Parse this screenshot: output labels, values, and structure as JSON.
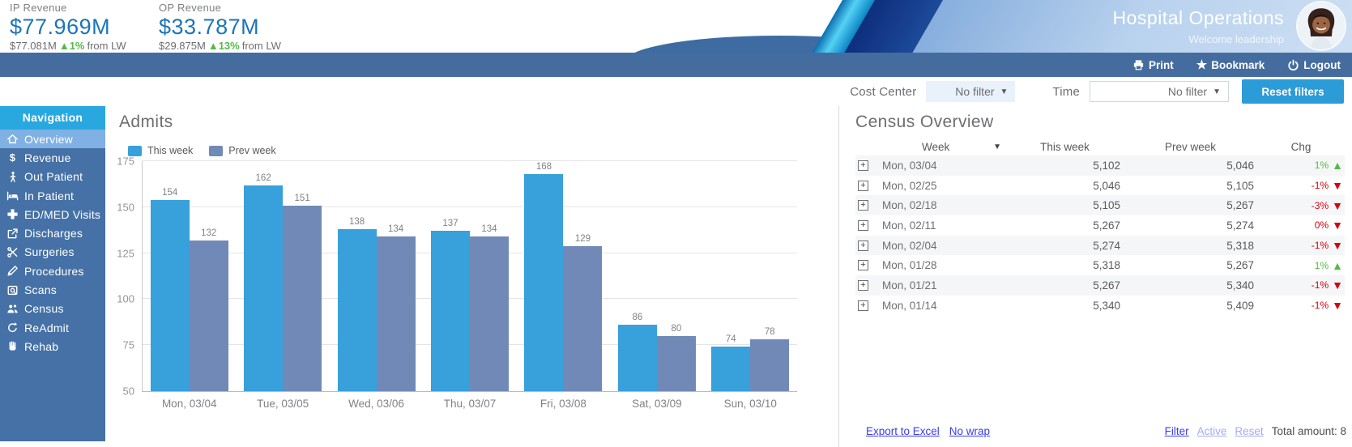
{
  "kpis": [
    {
      "label": "IP Revenue",
      "value": "$77.969M",
      "sub": "$77.081M",
      "delta": "▲1%",
      "delta_suffix": "from LW"
    },
    {
      "label": "OP Revenue",
      "value": "$33.787M",
      "sub": "$29.875M",
      "delta": "▲13%",
      "delta_suffix": "from  LW"
    }
  ],
  "header": {
    "title": "Hospital Operations",
    "subtitle": "Welcome leadership"
  },
  "toolbar": {
    "print_label": "Print",
    "bookmark_label": "Bookmark",
    "logout_label": "Logout"
  },
  "filters": {
    "cost_center_label": "Cost Center",
    "cost_center_value": "No filter",
    "time_label": "Time",
    "time_value": "No filter",
    "reset_label": "Reset filters"
  },
  "icons": {
    "star": "★",
    "caret_down": "▼",
    "sort_caret": "▼",
    "triangle_up": "▲",
    "triangle_down": "▼",
    "expand_plus": "+"
  },
  "sidebar": {
    "title": "Navigation",
    "items": [
      {
        "label": "Overview",
        "icon": "home-icon",
        "active": true
      },
      {
        "label": "Revenue",
        "icon": "dollar-icon",
        "active": false
      },
      {
        "label": "Out Patient",
        "icon": "walking-person-icon",
        "active": false
      },
      {
        "label": "In Patient",
        "icon": "bed-icon",
        "active": false
      },
      {
        "label": "ED/MED Visits",
        "icon": "medical-cross-icon",
        "active": false
      },
      {
        "label": "Discharges",
        "icon": "share-arrow-icon",
        "active": false
      },
      {
        "label": "Surgeries",
        "icon": "scissors-icon",
        "active": false
      },
      {
        "label": "Procedures",
        "icon": "scalpel-icon",
        "active": false
      },
      {
        "label": "Scans",
        "icon": "scan-icon",
        "active": false
      },
      {
        "label": "Census",
        "icon": "people-icon",
        "active": false
      },
      {
        "label": "ReAdmit",
        "icon": "undo-arrow-icon",
        "active": false
      },
      {
        "label": "Rehab",
        "icon": "hand-icon",
        "active": false
      }
    ]
  },
  "chart_data": {
    "type": "bar",
    "title": "Admits",
    "categories": [
      "Mon, 03/04",
      "Tue, 03/05",
      "Wed, 03/06",
      "Thu, 03/07",
      "Fri, 03/08",
      "Sat, 03/09",
      "Sun, 03/10"
    ],
    "series": [
      {
        "name": "This week",
        "color": "#38a0db",
        "values": [
          154,
          162,
          138,
          137,
          168,
          86,
          74
        ]
      },
      {
        "name": "Prev week",
        "color": "#7189b7",
        "values": [
          132,
          151,
          134,
          134,
          129,
          80,
          78
        ]
      }
    ],
    "ylim": [
      50,
      175
    ],
    "yticks": [
      50,
      75,
      100,
      125,
      150,
      175
    ],
    "grid": true,
    "legend_position": "top-left",
    "value_labels": true
  },
  "census": {
    "title": "Census Overview",
    "columns": [
      "Week",
      "This week",
      "Prev week",
      "Chg"
    ],
    "rows": [
      {
        "week": "Mon, 03/04",
        "this_week": "5,102",
        "prev_week": "5,046",
        "chg": "1%",
        "dir": "up"
      },
      {
        "week": "Mon, 02/25",
        "this_week": "5,046",
        "prev_week": "5,105",
        "chg": "-1%",
        "dir": "down"
      },
      {
        "week": "Mon, 02/18",
        "this_week": "5,105",
        "prev_week": "5,267",
        "chg": "-3%",
        "dir": "down"
      },
      {
        "week": "Mon, 02/11",
        "this_week": "5,267",
        "prev_week": "5,274",
        "chg": "0%",
        "dir": "down"
      },
      {
        "week": "Mon, 02/04",
        "this_week": "5,274",
        "prev_week": "5,318",
        "chg": "-1%",
        "dir": "down"
      },
      {
        "week": "Mon, 01/28",
        "this_week": "5,318",
        "prev_week": "5,267",
        "chg": "1%",
        "dir": "up"
      },
      {
        "week": "Mon, 01/21",
        "this_week": "5,267",
        "prev_week": "5,340",
        "chg": "-1%",
        "dir": "down"
      },
      {
        "week": "Mon, 01/14",
        "this_week": "5,340",
        "prev_week": "5,409",
        "chg": "-1%",
        "dir": "down"
      }
    ],
    "footer": {
      "export_label": "Export to Excel",
      "nowrap_label": "No wrap",
      "filter_label": "Filter",
      "active_label": "Active",
      "reset_label": "Reset",
      "total_label": "Total amount: 8"
    }
  }
}
